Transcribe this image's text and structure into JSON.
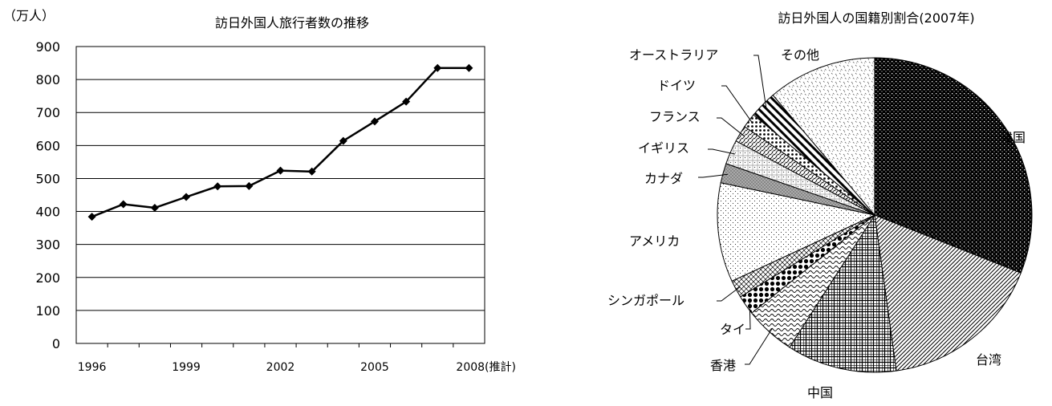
{
  "chart_data": [
    {
      "type": "line",
      "title": "訪日外国人旅行者数の推移",
      "ylabel": "（万人）",
      "ylim": [
        0,
        900
      ],
      "yticks": [
        0,
        100,
        200,
        300,
        400,
        500,
        600,
        700,
        800,
        900
      ],
      "x_tick_labels": [
        "1996",
        "1999",
        "2002",
        "2005",
        "2008(推計)"
      ],
      "x": [
        1996,
        1997,
        1998,
        1999,
        2000,
        2001,
        2002,
        2003,
        2004,
        2005,
        2006,
        2007,
        2008
      ],
      "values": [
        384,
        422,
        411,
        444,
        476,
        477,
        524,
        521,
        614,
        673,
        733,
        835,
        835
      ],
      "grid": true,
      "marker": "diamond",
      "color": "#000000"
    },
    {
      "type": "pie",
      "title": "訪日外国人の国籍別割合(2007年)",
      "slices": [
        {
          "label": "韓国",
          "value": 31.0
        },
        {
          "label": "台湾",
          "value": 16.8
        },
        {
          "label": "中国",
          "value": 11.3
        },
        {
          "label": "香港",
          "value": 5.2
        },
        {
          "label": "タイ",
          "value": 2.0
        },
        {
          "label": "シンガポール",
          "value": 1.8
        },
        {
          "label": "アメリカ",
          "value": 10.2
        },
        {
          "label": "カナダ",
          "value": 2.0
        },
        {
          "label": "イギリス",
          "value": 2.5
        },
        {
          "label": "フランス",
          "value": 1.7
        },
        {
          "label": "ドイツ",
          "value": 1.5
        },
        {
          "label": "オーストラリア",
          "value": 2.8
        },
        {
          "label": "その他",
          "value": 11.2
        }
      ],
      "start": "top, clockwise"
    }
  ]
}
